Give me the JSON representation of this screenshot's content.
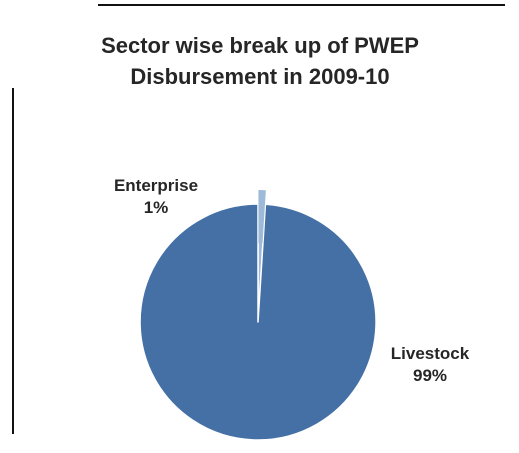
{
  "chart_data": {
    "type": "pie",
    "title_lines": [
      "Sector wise break up of PWEP",
      "Disbursement in 2009-10"
    ],
    "slices": [
      {
        "label": "Enterprise",
        "percent_label": "1%",
        "value": 1,
        "color": "#9dbad8"
      },
      {
        "label": "Livestock",
        "percent_label": "99%",
        "value": 99,
        "color": "#4470a6"
      }
    ],
    "start_angle_deg": 0,
    "direction": "clockwise",
    "legend": "none",
    "slice_border_color": "#ffffff"
  }
}
